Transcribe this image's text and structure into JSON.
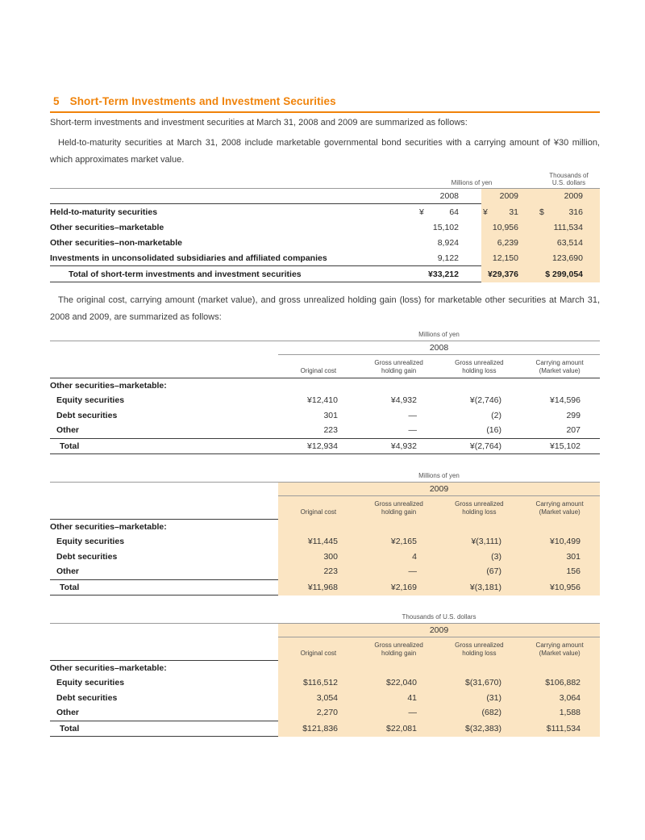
{
  "colors": {
    "accent_orange": "#F0830A",
    "highlight_peach": "#FBE5C3"
  },
  "page": {
    "section_number": "5",
    "section_title": "Short-Term Investments and Investment Securities",
    "intro": "Short-term investments and investment securities at March 31, 2008 and 2009 are summarized as follows:",
    "note": "Held-to-maturity securities at March 31, 2008 include marketable governmental bond securities with a carrying amount of ¥30 million, which approximates market value.",
    "detail_intro": "The original cost, carrying amount (market value), and gross unrealized holding gain (loss) for marketable other securities at March 31, 2008 and 2009, are summarized as follows:"
  },
  "summary_table": {
    "unit_yen": "Millions of yen",
    "unit_usd_line1": "Thousands of",
    "unit_usd_line2": "U.S. dollars",
    "years": {
      "y2008": "2008",
      "y2009": "2009",
      "usd2009": "2009"
    },
    "rows": [
      {
        "label": "Held-to-maturity securities",
        "sym2008": "¥",
        "v2008": "64",
        "sym2009": "¥",
        "v2009": "31",
        "symusd": "$",
        "vusd": "316"
      },
      {
        "label": "Other securities–marketable",
        "sym2008": "",
        "v2008": "15,102",
        "sym2009": "",
        "v2009": "10,956",
        "symusd": "",
        "vusd": "111,534"
      },
      {
        "label": "Other securities–non-marketable",
        "sym2008": "",
        "v2008": "8,924",
        "sym2009": "",
        "v2009": "6,239",
        "symusd": "",
        "vusd": "63,514"
      },
      {
        "label": "Investments in unconsolidated subsidiaries and affiliated companies",
        "sym2008": "",
        "v2008": "9,122",
        "sym2009": "",
        "v2009": "12,150",
        "symusd": "",
        "vusd": "123,690"
      }
    ],
    "total": {
      "label": "Total of short-term investments and investment securities",
      "v2008": "¥33,212",
      "v2009": "¥29,376",
      "vusd": "$ 299,054"
    }
  },
  "detail_tables": [
    {
      "unit": "Millions of yen",
      "year": "2008",
      "col1": "Original cost",
      "col2_l1": "Gross unrealized",
      "col2_l2": "holding gain",
      "col3_l1": "Gross unrealized",
      "col3_l2": "holding loss",
      "col4_l1": "Carrying amount",
      "col4_l2": "(Market value)",
      "group": "Other securities–marketable:",
      "rows": [
        {
          "label": "Equity securities",
          "c1": "¥12,410",
          "c2": "¥4,932",
          "c3": "¥(2,746)",
          "c4": "¥14,596"
        },
        {
          "label": "Debt securities",
          "c1": "301",
          "c2": "—",
          "c3": "(2)",
          "c4": "299"
        },
        {
          "label": "Other",
          "c1": "223",
          "c2": "—",
          "c3": "(16)",
          "c4": "207"
        }
      ],
      "total": {
        "label": "Total",
        "c1": "¥12,934",
        "c2": "¥4,932",
        "c3": "¥(2,764)",
        "c4": "¥15,102"
      }
    },
    {
      "unit": "Millions of yen",
      "year": "2009",
      "col1": "Original cost",
      "col2_l1": "Gross unrealized",
      "col2_l2": "holding gain",
      "col3_l1": "Gross unrealized",
      "col3_l2": "holding loss",
      "col4_l1": "Carrying amount",
      "col4_l2": "(Market value)",
      "group": "Other securities–marketable:",
      "rows": [
        {
          "label": "Equity securities",
          "c1": "¥11,445",
          "c2": "¥2,165",
          "c3": "¥(3,111)",
          "c4": "¥10,499"
        },
        {
          "label": "Debt securities",
          "c1": "300",
          "c2": "4",
          "c3": "(3)",
          "c4": "301"
        },
        {
          "label": "Other",
          "c1": "223",
          "c2": "—",
          "c3": "(67)",
          "c4": "156"
        }
      ],
      "total": {
        "label": "Total",
        "c1": "¥11,968",
        "c2": "¥2,169",
        "c3": "¥(3,181)",
        "c4": "¥10,956"
      }
    },
    {
      "unit": "Thousands of U.S. dollars",
      "year": "2009",
      "col1": "Original cost",
      "col2_l1": "Gross unrealized",
      "col2_l2": "holding gain",
      "col3_l1": "Gross unrealized",
      "col3_l2": "holding loss",
      "col4_l1": "Carrying amount",
      "col4_l2": "(Market value)",
      "group": "Other securities–marketable:",
      "rows": [
        {
          "label": "Equity securities",
          "c1": "$116,512",
          "c2": "$22,040",
          "c3": "$(31,670)",
          "c4": "$106,882"
        },
        {
          "label": "Debt securities",
          "c1": "3,054",
          "c2": "41",
          "c3": "(31)",
          "c4": "3,064"
        },
        {
          "label": "Other",
          "c1": "2,270",
          "c2": "—",
          "c3": "(682)",
          "c4": "1,588"
        }
      ],
      "total": {
        "label": "Total",
        "c1": "$121,836",
        "c2": "$22,081",
        "c3": "$(32,383)",
        "c4": "$111,534"
      }
    }
  ]
}
